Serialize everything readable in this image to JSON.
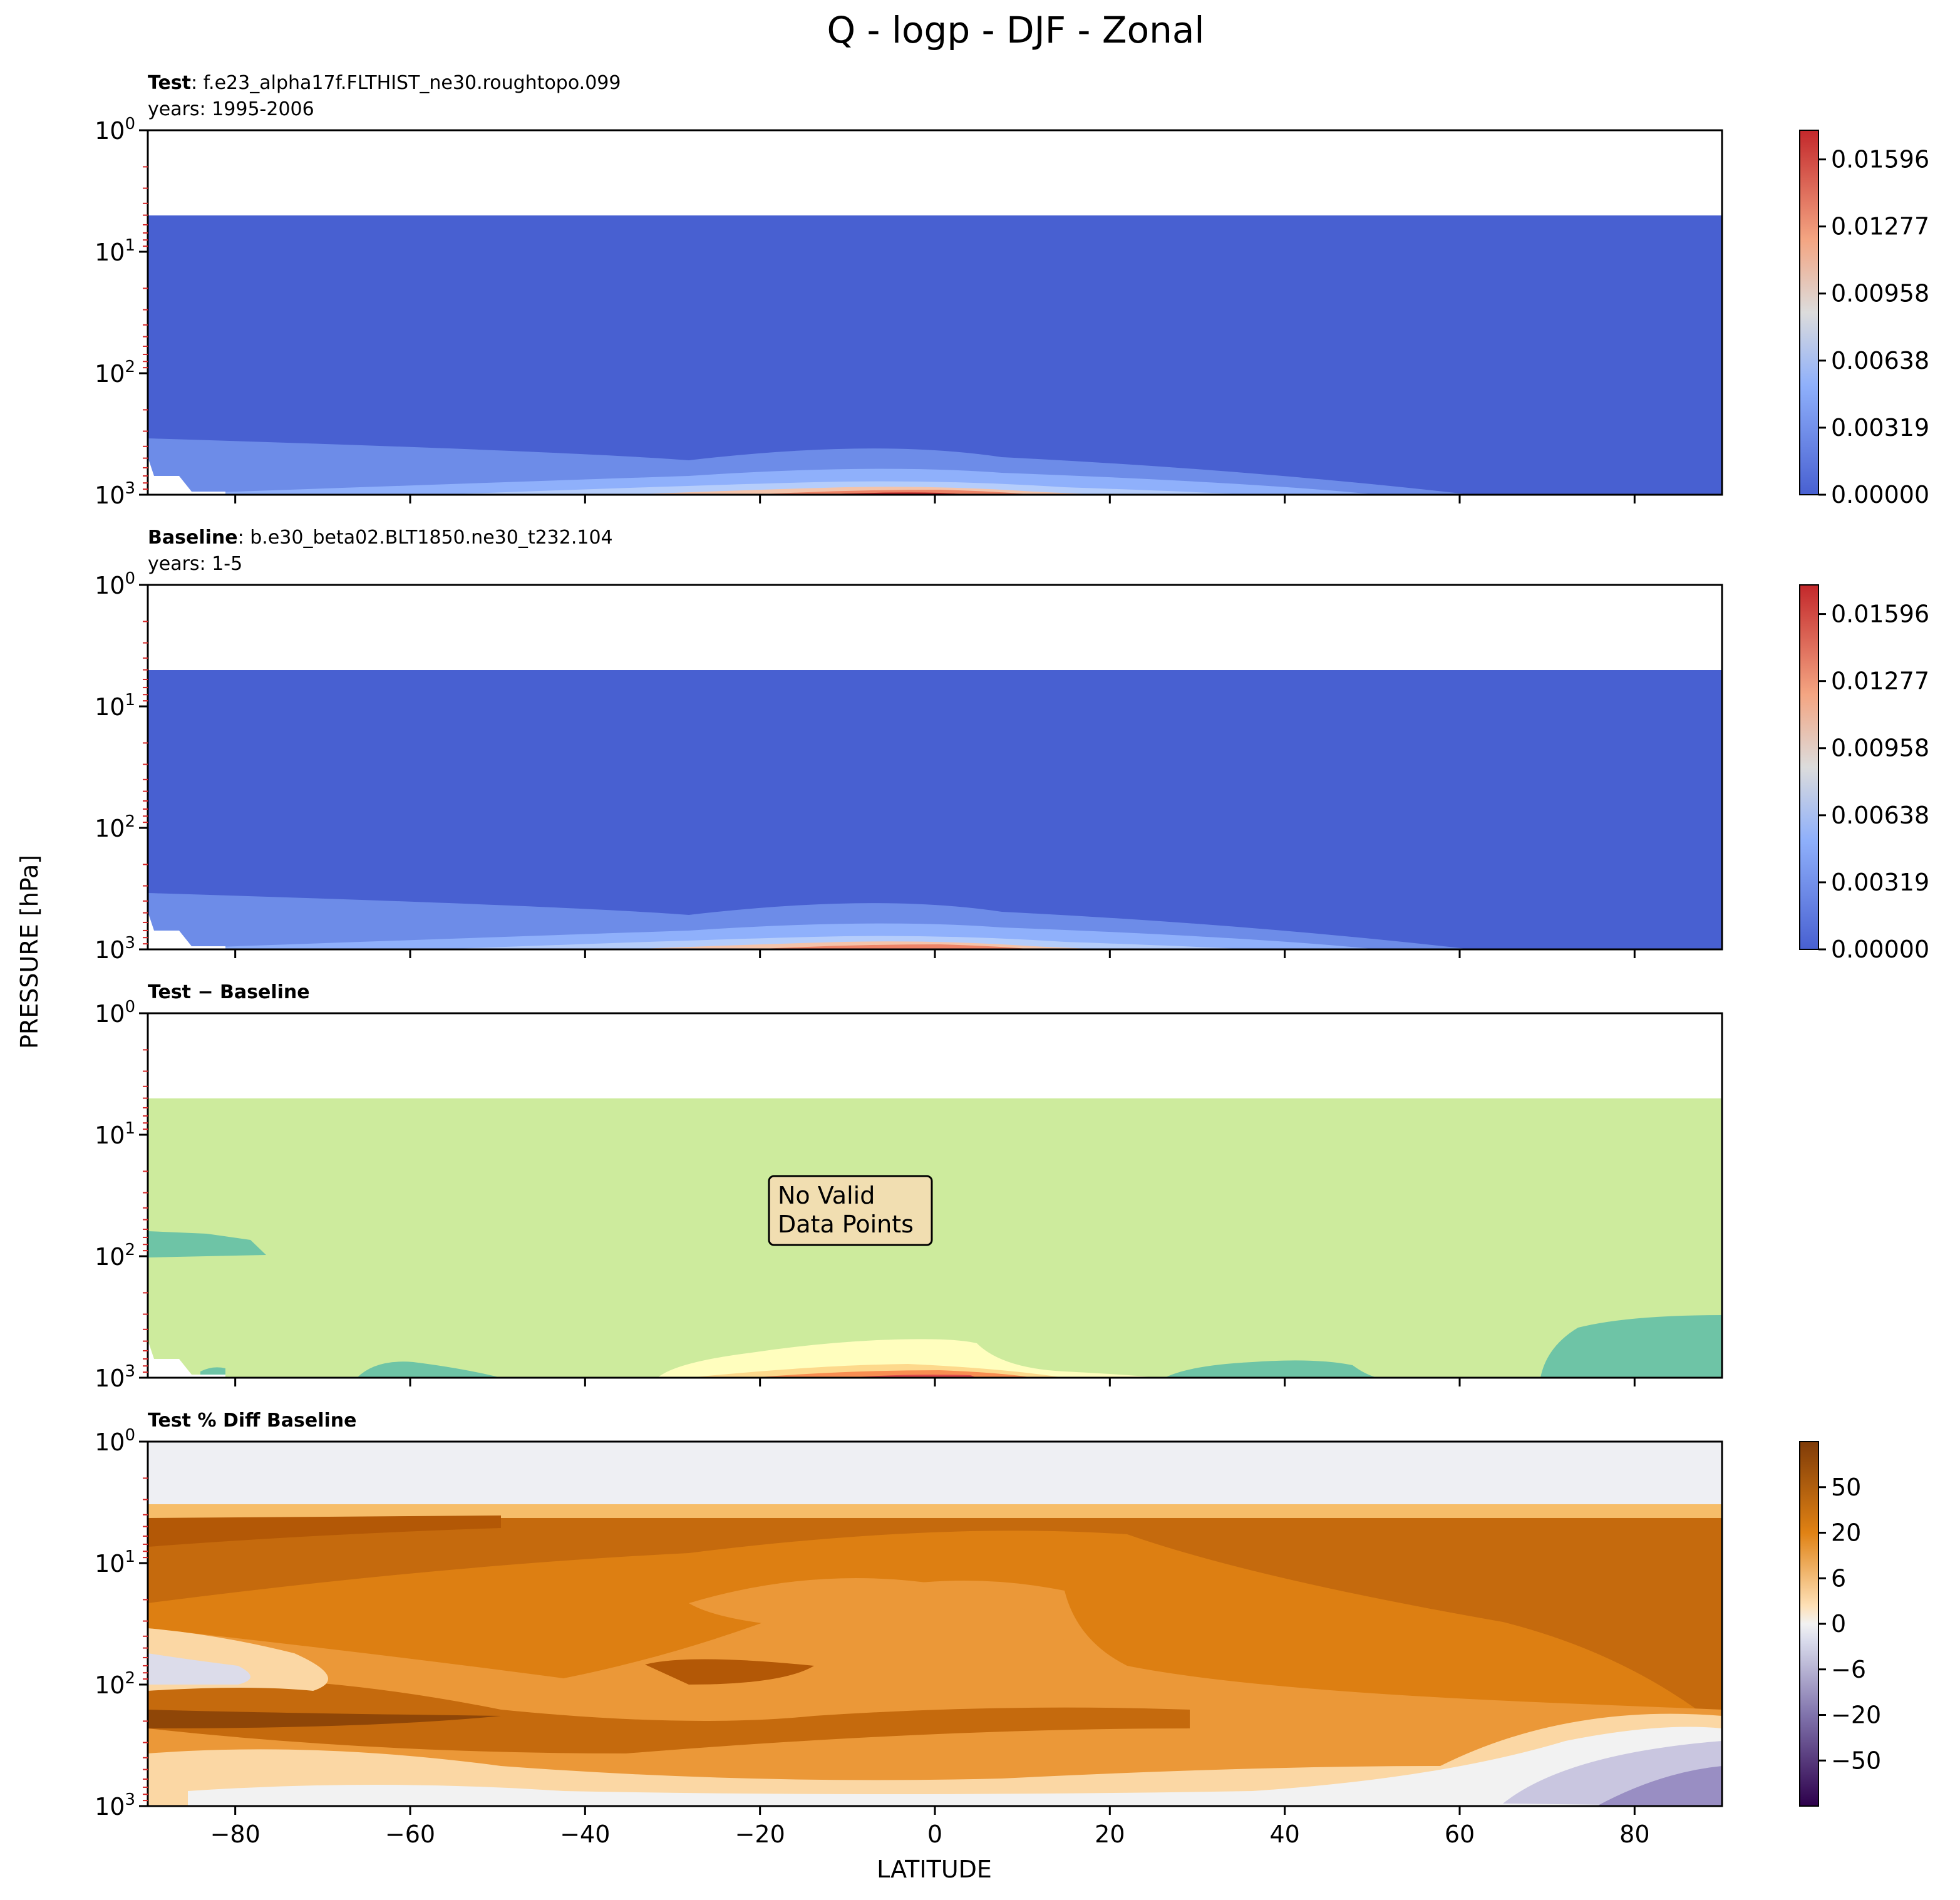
{
  "figure": {
    "title": "Q - logp - DJF - Zonal",
    "ylabel": "PRESSURE [hPa]",
    "xlabel": "LATITUDE",
    "x_ticks": [
      -80,
      -60,
      -40,
      -20,
      0,
      20,
      40,
      60,
      80
    ],
    "xlim": [
      -90,
      90
    ],
    "y_ticks": [
      {
        "value": 1,
        "base": "10",
        "exp": "0"
      },
      {
        "value": 10,
        "base": "10",
        "exp": "1"
      },
      {
        "value": 100,
        "base": "10",
        "exp": "2"
      },
      {
        "value": 1000,
        "base": "10",
        "exp": "3"
      }
    ],
    "ylim": [
      1,
      1000
    ],
    "yscale": "log",
    "y_inverted": true
  },
  "panels": [
    {
      "label_bold": "Test",
      "label_rest": ": f.e23_alpha17f.FLTHIST_ne30.roughtopo.099",
      "sub_label": "years: 1995-2006",
      "colormap": "coolwarm",
      "background_color": "#4860d1",
      "colorbar_ticks": [
        "0.00000",
        "0.00319",
        "0.00638",
        "0.00958",
        "0.01277",
        "0.01596"
      ]
    },
    {
      "label_bold": "Baseline",
      "label_rest": ": b.e30_beta02.BLT1850.ne30_t232.104",
      "sub_label": "years: 1-5",
      "colormap": "coolwarm",
      "background_color": "#4860d1",
      "colorbar_ticks": [
        "0.00000",
        "0.00319",
        "0.00638",
        "0.00958",
        "0.01277",
        "0.01596"
      ]
    },
    {
      "label_bold": "Test",
      "label_rest": " − Baseline",
      "sub_label": "",
      "colormap": "Spectral_r",
      "background_color": "#cdeb9d",
      "annotation": "No Valid\nData Points",
      "colorbar_ticks": []
    },
    {
      "label_bold": "Test % Diff Baseline",
      "label_rest": "",
      "sub_label": "",
      "colormap": "PuOr_r",
      "background_color": "#dd7f12",
      "colorbar_ticks": [
        "−50",
        "−20",
        "−6",
        "0",
        "6",
        "20",
        "50"
      ]
    }
  ],
  "chart_data": {
    "type": "heatmap",
    "title": "Q - logp - DJF - Zonal",
    "xlabel": "LATITUDE",
    "ylabel": "PRESSURE [hPa]",
    "xlim": [
      -90,
      90
    ],
    "ylim": [
      1000,
      1
    ],
    "yscale": "log",
    "panels": [
      {
        "name": "Test",
        "model_top_hPa": 5,
        "max_value_approx": 0.0175,
        "max_location": {
          "lat": -5,
          "pressure_hPa": 1000
        }
      },
      {
        "name": "Baseline",
        "model_top_hPa": 5,
        "max_value_approx": 0.0175,
        "max_location": {
          "lat": -5,
          "pressure_hPa": 1000
        }
      },
      {
        "name": "Test − Baseline",
        "annotation": "No Valid Data Points"
      },
      {
        "name": "Test % Diff Baseline",
        "range": [
          -80,
          80
        ]
      }
    ]
  }
}
